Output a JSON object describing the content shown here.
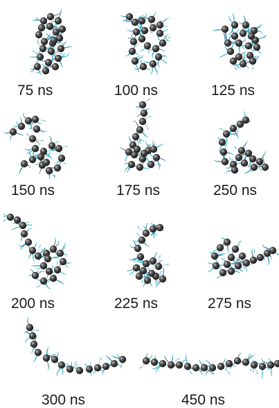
{
  "figure": {
    "background": "#ffffff",
    "bead_color": "#4a4a4a",
    "sidechain_colors": [
      "#3fb7c9",
      "#7a8796",
      "#2f8fb3",
      "#c9d3db"
    ],
    "panels": [
      {
        "id": "p75",
        "label": "75 ns",
        "shape": "compact-globule"
      },
      {
        "id": "p100",
        "label": "100 ns",
        "shape": "compact-globule-open"
      },
      {
        "id": "p125",
        "label": "125 ns",
        "shape": "compact-globule"
      },
      {
        "id": "p150",
        "label": "150 ns",
        "shape": "partially-extended"
      },
      {
        "id": "p175",
        "label": "175 ns",
        "shape": "partially-extended-vertical"
      },
      {
        "id": "p250",
        "label": "250 ns",
        "shape": "hooked"
      },
      {
        "id": "p200",
        "label": "200 ns",
        "shape": "partially-extended-diagonal"
      },
      {
        "id": "p225",
        "label": "225 ns",
        "shape": "partially-extended"
      },
      {
        "id": "p275",
        "label": "275 ns",
        "shape": "extended"
      },
      {
        "id": "p300",
        "label": "300 ns",
        "shape": "extended-chain"
      },
      {
        "id": "p450",
        "label": "450 ns",
        "shape": "fully-extended-chain"
      }
    ]
  }
}
